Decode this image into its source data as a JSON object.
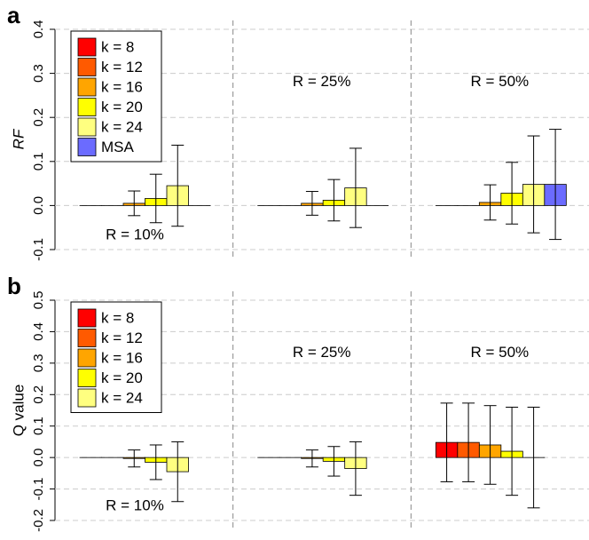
{
  "chart_data": [
    {
      "type": "bar",
      "panel": "a",
      "ylabel": "RF",
      "ylim": [
        -0.1,
        0.4
      ],
      "yticks": [
        -0.1,
        0.0,
        0.1,
        0.2,
        0.3,
        0.4
      ],
      "grid": true,
      "categories": [
        "R = 10%",
        "R = 25%",
        "R = 50%"
      ],
      "series": [
        {
          "name": "k = 8",
          "color": "#ff0000",
          "values": [
            0,
            0,
            0
          ],
          "errors": [
            null,
            null,
            null
          ]
        },
        {
          "name": "k = 12",
          "color": "#ff5a00",
          "values": [
            0,
            0,
            0
          ],
          "errors": [
            null,
            null,
            null
          ]
        },
        {
          "name": "k = 16",
          "color": "#ffa500",
          "values": [
            0.005,
            0.005,
            0.007
          ],
          "errors": [
            0.028,
            0.027,
            0.04
          ]
        },
        {
          "name": "k = 20",
          "color": "#ffff00",
          "values": [
            0.016,
            0.012,
            0.028
          ],
          "errors": [
            0.055,
            0.047,
            0.07
          ]
        },
        {
          "name": "k = 24",
          "color": "#ffff80",
          "values": [
            0.045,
            0.04,
            0.048
          ],
          "errors": [
            0.092,
            0.09,
            0.11
          ]
        },
        {
          "name": "MSA",
          "color": "#6b6bff",
          "values": [
            0,
            0,
            0.048
          ],
          "errors": [
            null,
            null,
            0.125
          ]
        }
      ]
    },
    {
      "type": "bar",
      "panel": "b",
      "ylabel": "Q value",
      "ylim": [
        -0.2,
        0.5
      ],
      "yticks": [
        -0.2,
        -0.1,
        0.0,
        0.1,
        0.2,
        0.3,
        0.4,
        0.5
      ],
      "grid": true,
      "categories": [
        "R = 10%",
        "R = 25%",
        "R = 50%"
      ],
      "series": [
        {
          "name": "k = 8",
          "color": "#ff0000",
          "values": [
            0,
            0,
            0.048
          ],
          "errors": [
            null,
            null,
            0.125
          ]
        },
        {
          "name": "k = 12",
          "color": "#ff5a00",
          "values": [
            0,
            0,
            0.048
          ],
          "errors": [
            null,
            null,
            0.125
          ]
        },
        {
          "name": "k = 16",
          "color": "#ffa500",
          "values": [
            -0.003,
            -0.003,
            0.04
          ],
          "errors": [
            0.027,
            0.027,
            0.125
          ]
        },
        {
          "name": "k = 20",
          "color": "#ffff00",
          "values": [
            -0.015,
            -0.012,
            0.02
          ],
          "errors": [
            0.055,
            0.047,
            0.14
          ]
        },
        {
          "name": "k = 24",
          "color": "#ffff80",
          "values": [
            -0.045,
            -0.035,
            0
          ],
          "errors": [
            0.095,
            0.085,
            0.16
          ]
        }
      ]
    }
  ]
}
